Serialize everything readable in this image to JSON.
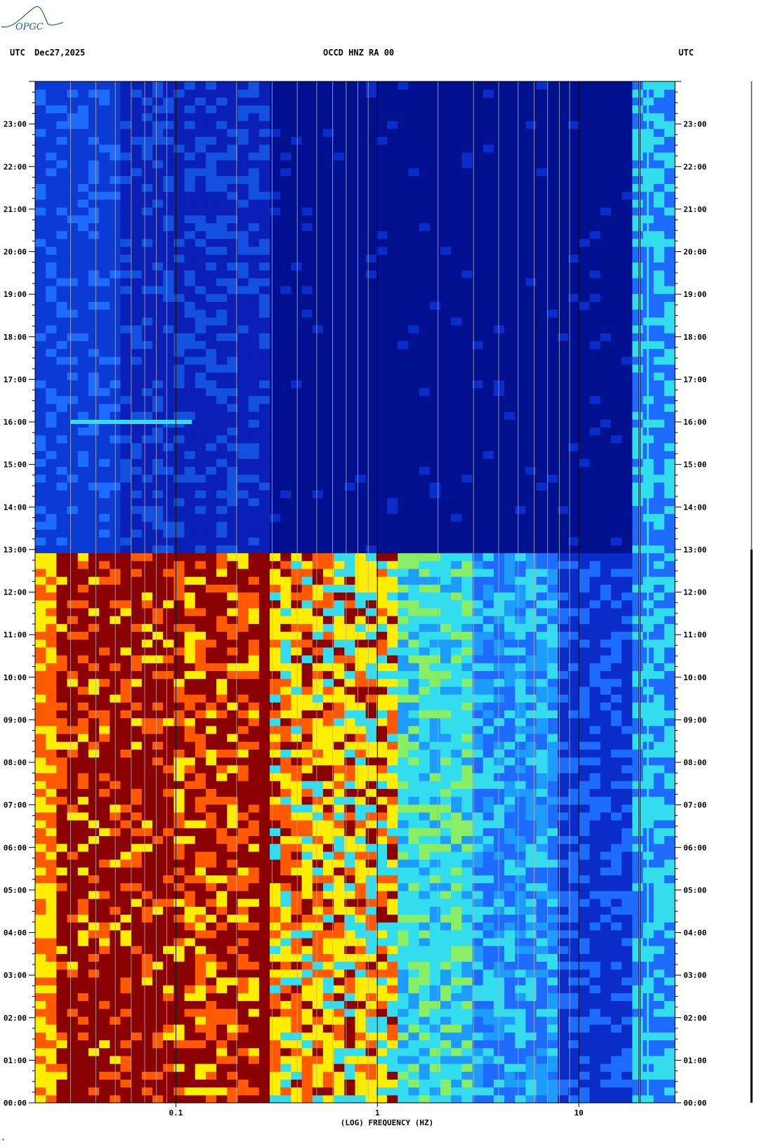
{
  "header": {
    "left_tz": "UTC",
    "date": "Dec27,2025",
    "channel": "OCCD HNZ RA 00",
    "right_tz": "UTC"
  },
  "logo": {
    "text": "OPGC"
  },
  "footnote": "ᵃ",
  "colors": {
    "quiet": "#0a1fb5",
    "deep": "#00108f",
    "band_red": "#8b0000",
    "band_orange": "#ff5a00",
    "band_yellow": "#ffee00",
    "band_cyan": "#33ddee",
    "band_light": "#1e6bff"
  },
  "chart_data": {
    "type": "heatmap",
    "title": "OCCD HNZ RA 00",
    "xlabel": "(LOG) FREQUENCY (HZ)",
    "ylabel": "UTC",
    "x_scale": "log",
    "xlim": [
      0.02,
      30
    ],
    "x_ticks": [
      {
        "value": 0.1,
        "label": "0.1"
      },
      {
        "value": 1,
        "label": "1"
      },
      {
        "value": 10,
        "label": "10"
      }
    ],
    "y_ticks": [
      "00:00",
      "01:00",
      "02:00",
      "03:00",
      "04:00",
      "05:00",
      "06:00",
      "07:00",
      "08:00",
      "09:00",
      "10:00",
      "11:00",
      "12:00",
      "13:00",
      "14:00",
      "15:00",
      "16:00",
      "17:00",
      "18:00",
      "19:00",
      "20:00",
      "21:00",
      "22:00",
      "23:00"
    ],
    "ylim_hours": [
      0,
      24
    ],
    "regimes": [
      {
        "from_hour": 0,
        "to_hour": 13,
        "level": "high",
        "note": "energetic band 0.02-4 Hz"
      },
      {
        "from_hour": 13,
        "to_hour": 24,
        "level": "low"
      }
    ],
    "persistent_lines_hz": [
      20,
      22
    ],
    "transient": {
      "hour": 16.0,
      "from_hz": 0.03,
      "to_hz": 0.12
    }
  }
}
